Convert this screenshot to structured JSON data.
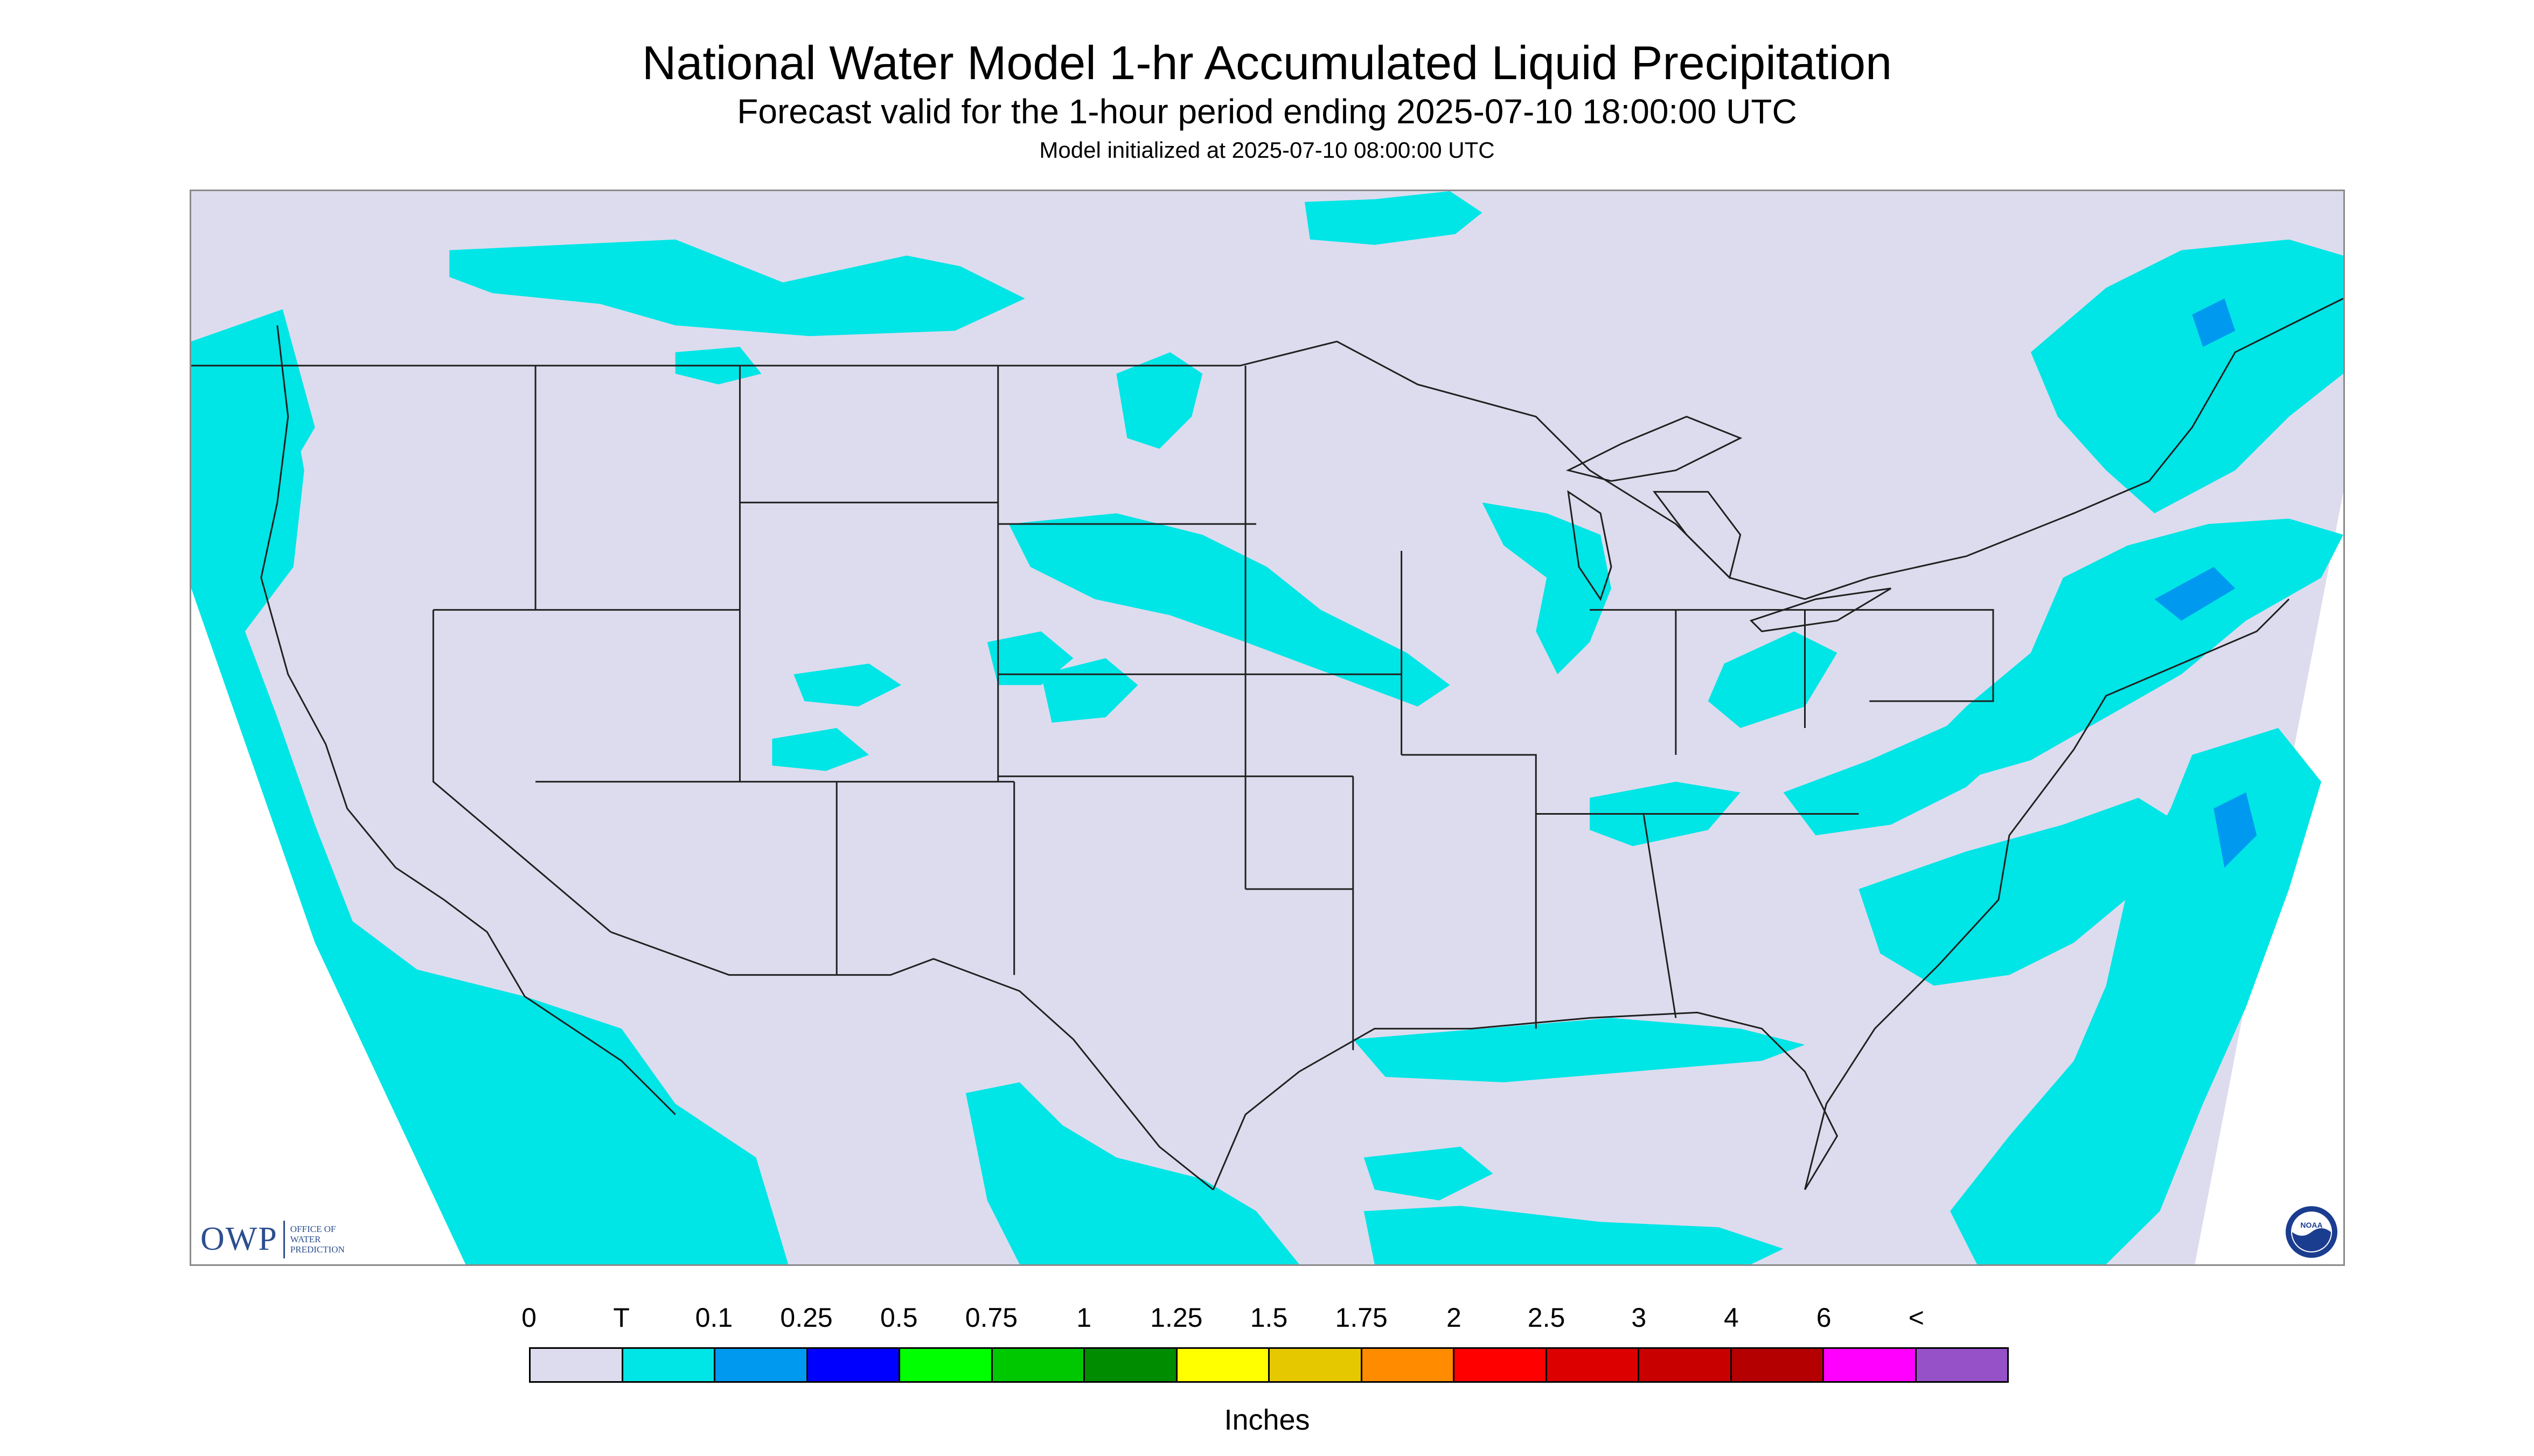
{
  "header": {
    "title": "National Water Model 1-hr Accumulated Liquid Precipitation",
    "subtitle": "Forecast valid for the 1-hour period ending 2025-07-10 18:00:00 UTC",
    "init": "Model initialized at 2025-07-10 08:00:00 UTC"
  },
  "map": {
    "background_color": "#dcdcee",
    "precip_color": "#00e5e5",
    "heavy_color": "#0099f0",
    "border_color": "#202020"
  },
  "logos": {
    "owp_text": "OWP",
    "owp_sub": [
      "OFFICE OF",
      "WATER",
      "PREDICTION"
    ],
    "noaa_text": "NOAA",
    "noaa_icon": "noaa-seal-icon"
  },
  "legend": {
    "labels": [
      "0",
      "T",
      "0.1",
      "0.25",
      "0.5",
      "0.75",
      "1",
      "1.25",
      "1.5",
      "1.75",
      "2",
      "2.5",
      "3",
      "4",
      "6",
      "<"
    ],
    "colors": [
      "#dcdcee",
      "#00e5e5",
      "#0099f0",
      "#0000ff",
      "#00ff00",
      "#00c800",
      "#008c00",
      "#ffff00",
      "#e6c800",
      "#ff8c00",
      "#ff0000",
      "#dc0000",
      "#c80000",
      "#b40000",
      "#ff00ff",
      "#9650c8"
    ],
    "unit": "Inches"
  }
}
